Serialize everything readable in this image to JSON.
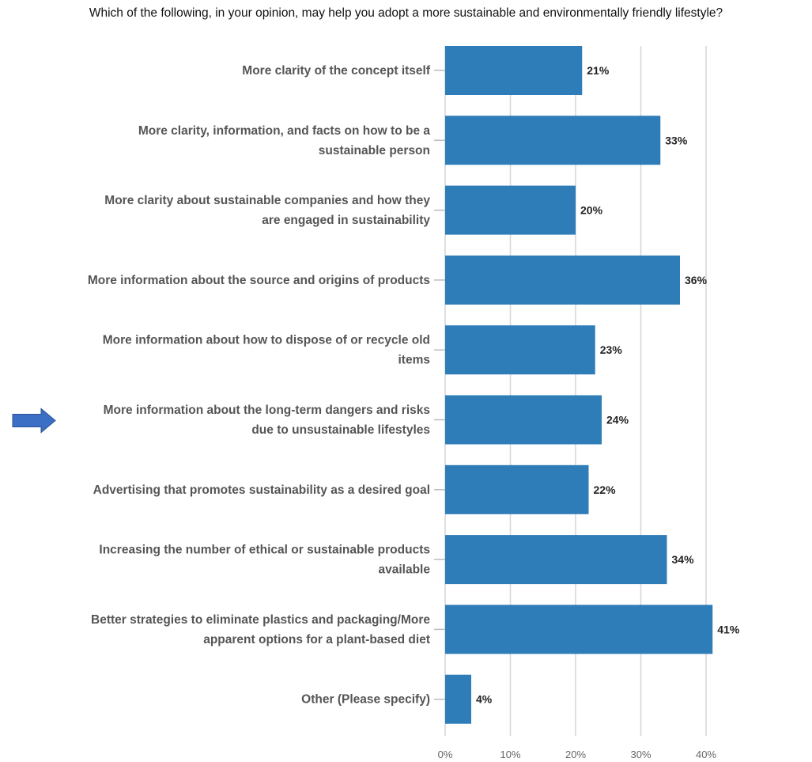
{
  "chart_data": {
    "type": "bar",
    "orientation": "horizontal",
    "title": "Which of the following, in your opinion, may help you adopt a more sustainable and environmentally friendly lifestyle?",
    "categories": [
      [
        "More clarity of the concept itself"
      ],
      [
        "More clarity, information, and facts on how to be a",
        "sustainable person"
      ],
      [
        "More clarity about sustainable companies and how they",
        "are engaged in sustainability"
      ],
      [
        "More information about the source and origins of products"
      ],
      [
        "More information about how to dispose of or recycle old",
        "items"
      ],
      [
        "More information about the long-term dangers and risks",
        "due to unsustainable lifestyles"
      ],
      [
        "Advertising that promotes sustainability as a desired goal"
      ],
      [
        "Increasing the number of ethical or sustainable products",
        "available"
      ],
      [
        "Better strategies to eliminate plastics and packaging/More",
        "apparent options for a plant-based diet"
      ],
      [
        "Other (Please specify)"
      ]
    ],
    "values": [
      21,
      33,
      20,
      36,
      23,
      24,
      22,
      34,
      41,
      4
    ],
    "value_labels": [
      "21%",
      "33%",
      "20%",
      "36%",
      "23%",
      "24%",
      "22%",
      "34%",
      "41%",
      "4%"
    ],
    "x_ticks": [
      "0%",
      "10%",
      "20%",
      "30%",
      "40%"
    ],
    "xlim": [
      0,
      40
    ],
    "grid": true,
    "bar_color": "#2e7db8",
    "highlighted_category_index": 5,
    "arrow_color": "#3b6fc6"
  }
}
